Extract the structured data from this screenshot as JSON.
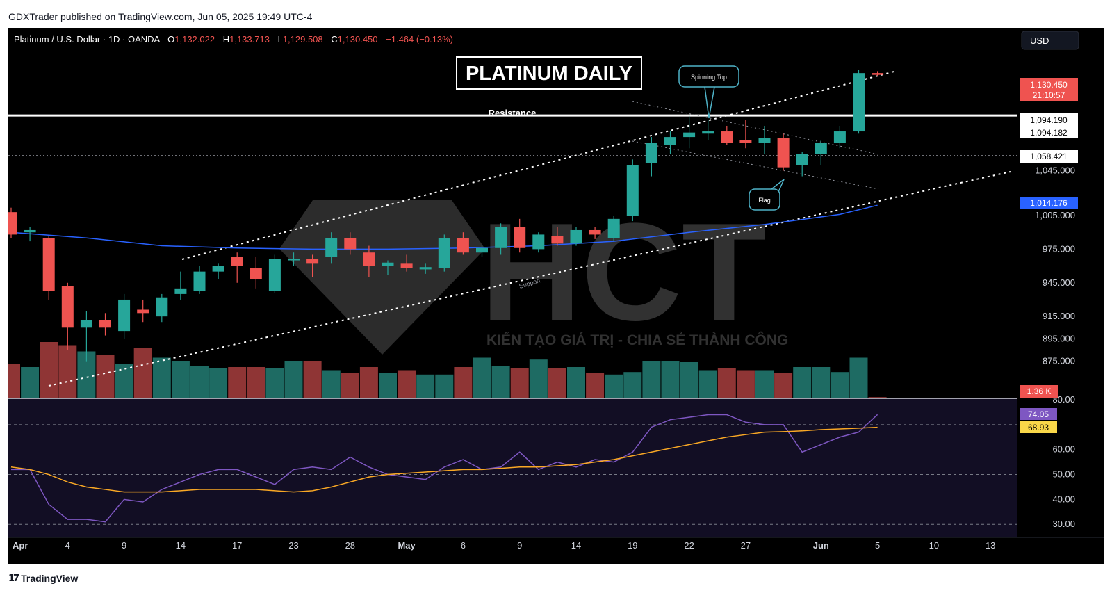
{
  "header": {
    "published_line": "GDXTrader published on TradingView.com, Jun 05, 2025 19:49 UTC-4"
  },
  "legend": {
    "symbol": "Platinum / U.S. Dollar · 1D · OANDA",
    "o_label": "O",
    "o_value": "1,132.022",
    "h_label": "H",
    "h_value": "1,133.713",
    "l_label": "L",
    "l_value": "1,129.508",
    "c_label": "C",
    "c_value": "1,130.450",
    "change": "−1.464 (−0.13%)"
  },
  "currency_button": "USD",
  "title_box": "PLATINUM DAILY",
  "annotations": {
    "resistance": "Resistance",
    "spinning_top": "Spinning Top",
    "flag": "Flag",
    "support": "Support"
  },
  "watermark": {
    "logo": "HCT",
    "tagline": "KIẾN TẠO GIÁ TRỊ - CHIA SẺ THÀNH CÔNG"
  },
  "price_badges": {
    "last_price": "1,130.450",
    "countdown": "21:10:57",
    "resistance_a": "1,094.190",
    "resistance_b": "1,094.182",
    "level_dotted": "1,058.421",
    "ma": "1,014.176",
    "volume": "1.36 K"
  },
  "rsi_badges": {
    "rsi": "74.05",
    "rsi_ma": "68.93"
  },
  "footer": {
    "brand": "TradingView",
    "logo_glyph": "𝟭𝟳"
  },
  "colors": {
    "up": "#26a69a",
    "down": "#ef5350",
    "ma": "#2962ff",
    "rsi": "#7e57c2",
    "rsi_ma": "#f9a825",
    "background": "#000000",
    "rsi_band": "#120e24"
  },
  "chart_data": {
    "type": "candlestick",
    "price_axis": {
      "ticks": [
        "1,045.000",
        "1,005.000",
        "975.000",
        "945.000",
        "915.000",
        "895.000",
        "875.000"
      ],
      "tick_values": [
        1045,
        1005,
        975,
        945,
        915,
        895,
        875
      ],
      "ylim": [
        850,
        1160
      ]
    },
    "x_axis": {
      "labels": [
        "Apr",
        "4",
        "9",
        "14",
        "17",
        "23",
        "28",
        "May",
        "6",
        "9",
        "14",
        "19",
        "22",
        "27",
        "Jun",
        "5",
        "10",
        "13"
      ],
      "label_index": [
        0,
        3,
        6,
        9,
        12,
        15,
        18,
        21,
        24,
        27,
        30,
        33,
        36,
        39,
        43,
        46,
        49,
        52
      ]
    },
    "candles": [
      {
        "o": 1008,
        "h": 1012,
        "l": 985,
        "c": 988
      },
      {
        "o": 990,
        "h": 995,
        "l": 982,
        "c": 992
      },
      {
        "o": 985,
        "h": 987,
        "l": 930,
        "c": 938
      },
      {
        "o": 942,
        "h": 945,
        "l": 885,
        "c": 905
      },
      {
        "o": 905,
        "h": 920,
        "l": 875,
        "c": 912
      },
      {
        "o": 912,
        "h": 918,
        "l": 898,
        "c": 905
      },
      {
        "o": 902,
        "h": 935,
        "l": 895,
        "c": 930
      },
      {
        "o": 921,
        "h": 930,
        "l": 910,
        "c": 918
      },
      {
        "o": 915,
        "h": 935,
        "l": 910,
        "c": 932
      },
      {
        "o": 935,
        "h": 955,
        "l": 930,
        "c": 940
      },
      {
        "o": 938,
        "h": 960,
        "l": 935,
        "c": 955
      },
      {
        "o": 955,
        "h": 962,
        "l": 948,
        "c": 960
      },
      {
        "o": 968,
        "h": 972,
        "l": 945,
        "c": 960
      },
      {
        "o": 958,
        "h": 968,
        "l": 940,
        "c": 948
      },
      {
        "o": 938,
        "h": 970,
        "l": 936,
        "c": 966
      },
      {
        "o": 965,
        "h": 972,
        "l": 960,
        "c": 966
      },
      {
        "o": 966,
        "h": 970,
        "l": 950,
        "c": 962
      },
      {
        "o": 968,
        "h": 990,
        "l": 962,
        "c": 985
      },
      {
        "o": 985,
        "h": 990,
        "l": 970,
        "c": 975
      },
      {
        "o": 972,
        "h": 978,
        "l": 950,
        "c": 960
      },
      {
        "o": 960,
        "h": 965,
        "l": 952,
        "c": 963
      },
      {
        "o": 962,
        "h": 970,
        "l": 955,
        "c": 958
      },
      {
        "o": 957,
        "h": 962,
        "l": 953,
        "c": 959
      },
      {
        "o": 958,
        "h": 988,
        "l": 955,
        "c": 985
      },
      {
        "o": 985,
        "h": 990,
        "l": 970,
        "c": 972
      },
      {
        "o": 972,
        "h": 978,
        "l": 968,
        "c": 976
      },
      {
        "o": 976,
        "h": 998,
        "l": 970,
        "c": 995
      },
      {
        "o": 995,
        "h": 1002,
        "l": 972,
        "c": 976
      },
      {
        "o": 975,
        "h": 990,
        "l": 972,
        "c": 988
      },
      {
        "o": 987,
        "h": 995,
        "l": 978,
        "c": 980
      },
      {
        "o": 980,
        "h": 995,
        "l": 978,
        "c": 992
      },
      {
        "o": 992,
        "h": 995,
        "l": 984,
        "c": 988
      },
      {
        "o": 985,
        "h": 1005,
        "l": 982,
        "c": 1002
      },
      {
        "o": 1005,
        "h": 1055,
        "l": 1000,
        "c": 1050
      },
      {
        "o": 1052,
        "h": 1075,
        "l": 1040,
        "c": 1070
      },
      {
        "o": 1068,
        "h": 1080,
        "l": 1060,
        "c": 1075
      },
      {
        "o": 1075,
        "h": 1094,
        "l": 1065,
        "c": 1079
      },
      {
        "o": 1078,
        "h": 1090,
        "l": 1072,
        "c": 1080
      },
      {
        "o": 1080,
        "h": 1085,
        "l": 1068,
        "c": 1070
      },
      {
        "o": 1072,
        "h": 1090,
        "l": 1065,
        "c": 1070
      },
      {
        "o": 1070,
        "h": 1085,
        "l": 1060,
        "c": 1074
      },
      {
        "o": 1074,
        "h": 1078,
        "l": 1045,
        "c": 1048
      },
      {
        "o": 1050,
        "h": 1062,
        "l": 1040,
        "c": 1060
      },
      {
        "o": 1060,
        "h": 1072,
        "l": 1050,
        "c": 1070
      },
      {
        "o": 1070,
        "h": 1085,
        "l": 1065,
        "c": 1080
      },
      {
        "o": 1080,
        "h": 1135,
        "l": 1078,
        "c": 1132
      },
      {
        "o": 1132.022,
        "h": 1133.713,
        "l": 1129.508,
        "c": 1130.45
      }
    ],
    "moving_average": [
      [
        0,
        990
      ],
      [
        4,
        985
      ],
      [
        8,
        978
      ],
      [
        12,
        976
      ],
      [
        16,
        975
      ],
      [
        20,
        975
      ],
      [
        24,
        976
      ],
      [
        28,
        978
      ],
      [
        32,
        982
      ],
      [
        36,
        990
      ],
      [
        40,
        997
      ],
      [
        44,
        1006
      ],
      [
        46,
        1014.176
      ]
    ],
    "levels": {
      "resistance": 1094.19,
      "dotted_line": 1058.421
    },
    "volume": {
      "values": [
        55,
        50,
        90,
        85,
        75,
        70,
        55,
        80,
        65,
        60,
        52,
        48,
        50,
        50,
        48,
        60,
        60,
        45,
        40,
        50,
        40,
        45,
        38,
        38,
        50,
        65,
        52,
        48,
        62,
        48,
        50,
        40,
        38,
        42,
        60,
        60,
        58,
        45,
        48,
        45,
        45,
        40,
        50,
        50,
        42,
        65,
        2
      ],
      "ymax": 100
    },
    "rsi": {
      "axis_ticks": [
        "80.00",
        "60.00",
        "50.00",
        "40.00",
        "30.00"
      ],
      "tick_values": [
        80,
        60,
        50,
        40,
        30
      ],
      "ylim": [
        27,
        80
      ],
      "bands": [
        70,
        50,
        30
      ],
      "values": [
        52,
        52,
        38,
        32,
        32,
        31,
        40,
        39,
        44,
        47,
        50,
        52,
        52,
        49,
        46,
        52,
        53,
        52,
        57,
        53,
        50,
        49,
        48,
        53,
        56,
        52,
        53,
        59,
        52,
        55,
        53,
        56,
        55,
        59,
        69,
        72,
        73,
        74,
        74,
        71,
        70,
        70,
        59,
        62,
        65,
        67,
        74.05
      ],
      "ma_values": [
        53,
        52,
        50,
        47,
        45,
        44,
        43,
        43,
        43,
        43.5,
        44,
        44,
        44,
        44,
        43.5,
        43,
        43.5,
        45,
        47,
        49,
        50,
        50.5,
        51,
        51.5,
        52,
        52,
        52.5,
        53,
        53,
        53.5,
        54,
        55,
        56,
        57.5,
        59,
        60.5,
        62,
        63.5,
        65,
        66,
        67,
        67.2,
        67.5,
        68,
        68.3,
        68.6,
        68.93
      ]
    }
  }
}
